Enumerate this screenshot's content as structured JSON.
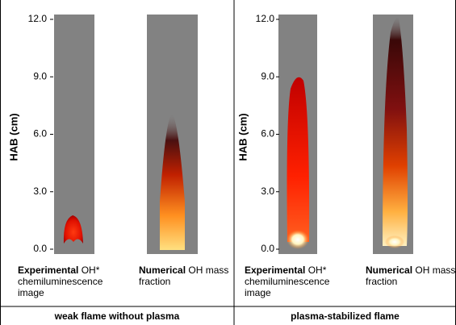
{
  "panels": [
    {
      "y_axis": {
        "label": "HAB (cm)",
        "ticks": [
          {
            "value": 0,
            "label": "0.0"
          },
          {
            "value": 3,
            "label": "3.0"
          },
          {
            "value": 6,
            "label": "6.0"
          },
          {
            "value": 9,
            "label": "9.0"
          },
          {
            "value": 12,
            "label": "12.0"
          }
        ]
      },
      "images": [
        {
          "caption_bold": "Experimental",
          "caption": "OH* chemiluminescence image"
        },
        {
          "caption_bold": "Numerical",
          "caption": "OH mass fraction"
        }
      ],
      "footer": "weak flame without plasma"
    },
    {
      "y_axis": {
        "label": "HAB (cm)",
        "ticks": [
          {
            "value": 0,
            "label": "0.0"
          },
          {
            "value": 3,
            "label": "3.0"
          },
          {
            "value": 6,
            "label": "6.0"
          },
          {
            "value": 9,
            "label": "9.0"
          },
          {
            "value": 12,
            "label": "12.0"
          }
        ]
      },
      "images": [
        {
          "caption_bold": "Experimental",
          "caption": "OH* chemiluminescence image"
        },
        {
          "caption_bold": "Numerical",
          "caption": "OH mass fraction"
        }
      ],
      "footer": "plasma-stabilized flame"
    }
  ]
}
